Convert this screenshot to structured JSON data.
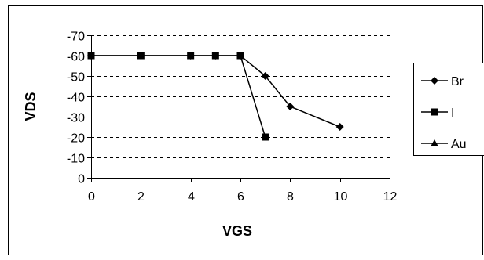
{
  "chart_data": {
    "type": "line",
    "xlabel": "VGS",
    "ylabel": "VDS",
    "xlim": [
      0,
      12
    ],
    "ylim": [
      0,
      -70
    ],
    "x_ticks": [
      "0",
      "2",
      "4",
      "6",
      "8",
      "10",
      "12"
    ],
    "y_ticks": [
      "-70",
      "-60",
      "-50",
      "-40",
      "-30",
      "-20",
      "-10",
      "0"
    ],
    "grid": "horizontal-dashed",
    "legend_position": "right",
    "series": [
      {
        "name": "Br",
        "marker": "diamond",
        "x": [
          0,
          2,
          4,
          5,
          6,
          7,
          8,
          10
        ],
        "y": [
          -60,
          -60,
          -60,
          -60,
          -60,
          -50,
          -35,
          -25
        ]
      },
      {
        "name": "I",
        "marker": "square",
        "x": [
          0,
          2,
          4,
          5,
          6,
          7
        ],
        "y": [
          -60,
          -60,
          -60,
          -60,
          -60,
          -20
        ]
      },
      {
        "name": "Au",
        "marker": "triangle",
        "x": [],
        "y": []
      }
    ],
    "colors": {
      "line": "#000000",
      "grid": "#000000",
      "border": "#000000"
    }
  }
}
